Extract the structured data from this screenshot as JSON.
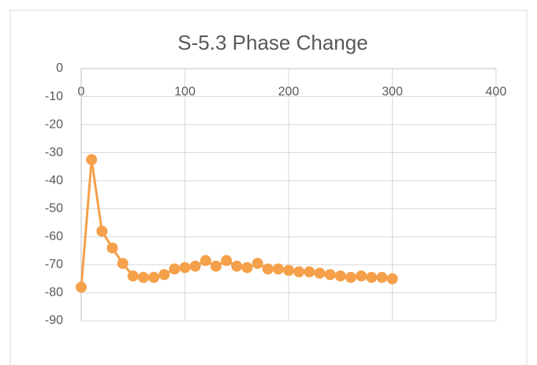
{
  "chart_data": {
    "type": "line",
    "title": "S-5.3 Phase Change",
    "x": [
      0,
      10,
      20,
      30,
      40,
      50,
      60,
      70,
      80,
      90,
      100,
      110,
      120,
      130,
      140,
      150,
      160,
      170,
      180,
      190,
      200,
      210,
      220,
      230,
      240,
      250,
      260,
      270,
      280,
      290,
      300
    ],
    "values": [
      -78,
      -32.5,
      -58,
      -64,
      -69.5,
      -74,
      -74.5,
      -74.5,
      -73.5,
      -71.5,
      -71,
      -70.5,
      -68.5,
      -70.5,
      -68.5,
      -70.5,
      -71,
      -69.5,
      -71.5,
      -71.5,
      -72,
      -72.5,
      -72.5,
      -73,
      -73.5,
      -74,
      -74.5,
      -74,
      -74.5,
      -74.5,
      -75
    ],
    "color": "#f5a04a",
    "xlim": [
      0,
      400
    ],
    "xticks": [
      0,
      100,
      200,
      300,
      400
    ],
    "ylim": [
      -90,
      0
    ],
    "yticks": [
      0,
      -10,
      -20,
      -30,
      -40,
      -50,
      -60,
      -70,
      -80,
      -90
    ],
    "grid": true
  }
}
